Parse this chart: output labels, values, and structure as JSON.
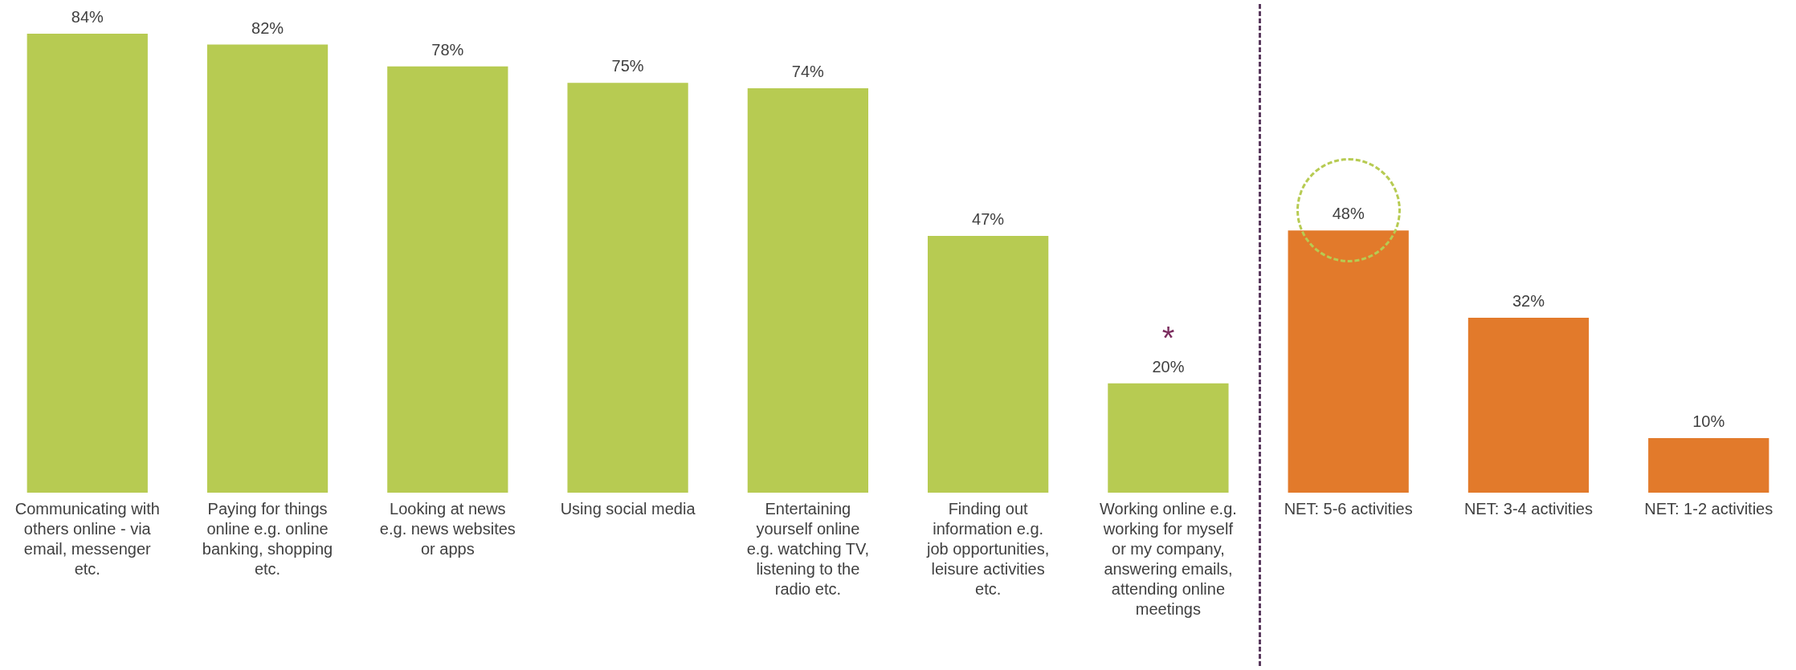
{
  "chart_data": {
    "type": "bar",
    "categories": [
      "Communicating with others online - via email, messenger etc.",
      "Paying for things online e.g. online banking, shopping etc.",
      "Looking at news e.g. news websites or apps",
      "Using social media",
      "Entertaining yourself online e.g. watching TV, listening to the radio etc.",
      "Finding out information e.g. job opportunities, leisure activities etc.",
      "Working online e.g. working for myself or my company, answering emails, attending online meetings",
      "NET: 5-6 activities",
      "NET: 3-4 activities",
      "NET: 1-2 activities"
    ],
    "values": [
      84,
      82,
      78,
      75,
      74,
      47,
      20,
      48,
      32,
      10
    ],
    "colors": [
      "#b7cb52",
      "#b7cb52",
      "#b7cb52",
      "#b7cb52",
      "#b7cb52",
      "#b7cb52",
      "#b7cb52",
      "#e27a2b",
      "#e27a2b",
      "#e27a2b"
    ],
    "value_labels": [
      "84%",
      "82%",
      "78%",
      "75%",
      "74%",
      "47%",
      "20%",
      "48%",
      "32%",
      "10%"
    ],
    "annotations": [
      {
        "text": "*",
        "x": "Working online e.g. working for myself or my company, answering emails, attending online meetings",
        "y": 20
      }
    ],
    "grid": false
  }
}
